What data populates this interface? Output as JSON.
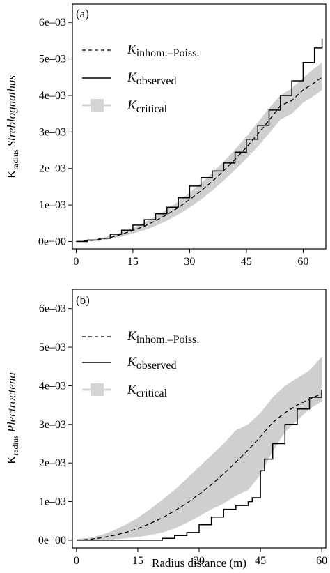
{
  "xlabel": "Radius distance (m)",
  "chart_data": [
    {
      "type": "line",
      "panel": "(a)",
      "ylabel": {
        "base": "K",
        "sub": "radius",
        "species": "Streblognathus"
      },
      "xlim": [
        -1,
        66
      ],
      "ylim": [
        -0.0002,
        0.0065
      ],
      "x_ticks": [
        0,
        15,
        30,
        45,
        60
      ],
      "y_ticks": [
        0,
        0.001,
        0.002,
        0.003,
        0.004,
        0.005,
        0.006
      ],
      "y_tick_labels": [
        "0e+00",
        "1e–03",
        "2e–03",
        "3e–03",
        "4e–03",
        "5e–03",
        "6e–03"
      ],
      "legend": [
        {
          "K": "K",
          "sub": "inhom.–Poiss.",
          "style": "dashed"
        },
        {
          "K": "K",
          "sub": "observed",
          "style": "solid"
        },
        {
          "K": "K",
          "sub": "critical",
          "style": "band"
        }
      ],
      "series": {
        "observed": {
          "x": [
            0,
            3,
            6,
            9,
            12,
            15,
            18,
            21,
            24,
            27,
            30,
            33,
            36,
            39,
            42,
            45,
            48,
            51,
            54,
            57,
            60,
            63,
            65
          ],
          "y": [
            0,
            4e-05,
            9e-05,
            0.0002,
            0.00031,
            0.00045,
            0.0006,
            0.00076,
            0.00094,
            0.0012,
            0.00152,
            0.00175,
            0.00193,
            0.00215,
            0.00245,
            0.0028,
            0.00318,
            0.0036,
            0.004,
            0.0044,
            0.0049,
            0.0053,
            0.00555
          ]
        },
        "expected": {
          "x": [
            0,
            3,
            6,
            9,
            12,
            15,
            18,
            21,
            24,
            27,
            30,
            33,
            36,
            39,
            42,
            45,
            48,
            51,
            54,
            57,
            60,
            63,
            65
          ],
          "y": [
            0,
            2e-05,
            5e-05,
            0.00011,
            0.0002,
            0.0003,
            0.00042,
            0.00057,
            0.00074,
            0.00093,
            0.00115,
            0.00139,
            0.00165,
            0.00194,
            0.00225,
            0.00258,
            0.00294,
            0.00332,
            0.00372,
            0.00386,
            0.00415,
            0.00435,
            0.0045
          ]
        },
        "critical": {
          "x": [
            0,
            3,
            6,
            9,
            12,
            15,
            18,
            21,
            24,
            27,
            30,
            33,
            36,
            39,
            42,
            45,
            48,
            51,
            54,
            57,
            60,
            63,
            65
          ],
          "upper": [
            0,
            3e-05,
            8e-05,
            0.00015,
            0.00025,
            0.00037,
            0.00052,
            0.00069,
            0.00088,
            0.0011,
            0.00134,
            0.0016,
            0.00188,
            0.00219,
            0.00252,
            0.00288,
            0.00326,
            0.00366,
            0.004,
            0.0042,
            0.00448,
            0.00475,
            0.0049
          ],
          "lower": [
            0,
            1e-05,
            3e-05,
            7e-05,
            0.00014,
            0.00022,
            0.00031,
            0.00043,
            0.00057,
            0.00074,
            0.00093,
            0.00115,
            0.0014,
            0.00167,
            0.00196,
            0.00227,
            0.0026,
            0.00296,
            0.00334,
            0.0035,
            0.0038,
            0.004,
            0.00415
          ]
        }
      }
    },
    {
      "type": "line",
      "panel": "(b)",
      "ylabel": {
        "base": "K",
        "sub": "radius",
        "species": "Plectroctena"
      },
      "xlim": [
        -1,
        61
      ],
      "ylim": [
        -0.0002,
        0.0065
      ],
      "x_ticks": [
        0,
        15,
        30,
        45,
        60
      ],
      "y_ticks": [
        0,
        0.001,
        0.002,
        0.003,
        0.004,
        0.005,
        0.006
      ],
      "y_tick_labels": [
        "0e+00",
        "1e–03",
        "2e–03",
        "3e–03",
        "4e–03",
        "5e–03",
        "6e–03"
      ],
      "legend": [
        {
          "K": "K",
          "sub": "inhom.–Poiss.",
          "style": "dashed"
        },
        {
          "K": "K",
          "sub": "observed",
          "style": "solid"
        },
        {
          "K": "K",
          "sub": "critical",
          "style": "band"
        }
      ],
      "series": {
        "observed": {
          "x": [
            0,
            3,
            6,
            9,
            12,
            15,
            18,
            20,
            21,
            24,
            27,
            30,
            33,
            36,
            39,
            42,
            43,
            45,
            46,
            48,
            51,
            54,
            57,
            60
          ],
          "y": [
            0,
            0,
            0,
            0,
            0,
            0,
            0,
            0,
            5e-05,
            0.00012,
            0.0002,
            0.0004,
            0.0006,
            0.0008,
            0.0009,
            0.001,
            0.0011,
            0.0018,
            0.0021,
            0.0025,
            0.003,
            0.0034,
            0.0037,
            0.0039
          ]
        },
        "expected": {
          "x": [
            0,
            3,
            6,
            9,
            12,
            15,
            18,
            21,
            24,
            27,
            30,
            33,
            36,
            39,
            42,
            45,
            48,
            51,
            54,
            57,
            60
          ],
          "y": [
            0,
            2e-05,
            6e-05,
            0.00012,
            0.0002,
            0.0003,
            0.00043,
            0.00058,
            0.00076,
            0.00096,
            0.00119,
            0.00144,
            0.00172,
            0.00202,
            0.00234,
            0.00268,
            0.00305,
            0.0033,
            0.0035,
            0.00365,
            0.0038
          ]
        },
        "critical": {
          "x": [
            0,
            3,
            6,
            9,
            12,
            15,
            18,
            21,
            24,
            27,
            30,
            33,
            36,
            39,
            42,
            45,
            48,
            51,
            54,
            57,
            60
          ],
          "upper": [
            3e-05,
            6e-05,
            0.00013,
            0.00025,
            0.0004,
            0.00058,
            0.0008,
            0.00105,
            0.0013,
            0.0016,
            0.0019,
            0.0022,
            0.0025,
            0.00285,
            0.003,
            0.0033,
            0.0037,
            0.004,
            0.0042,
            0.0044,
            0.00475
          ],
          "lower": [
            0,
            0,
            0,
            2e-05,
            5e-05,
            8e-05,
            0.00013,
            0.0002,
            0.0003,
            0.00045,
            0.00062,
            0.0008,
            0.00095,
            0.00115,
            0.0013,
            0.0017,
            0.0023,
            0.0028,
            0.0031,
            0.0034,
            0.0036
          ]
        }
      }
    }
  ]
}
